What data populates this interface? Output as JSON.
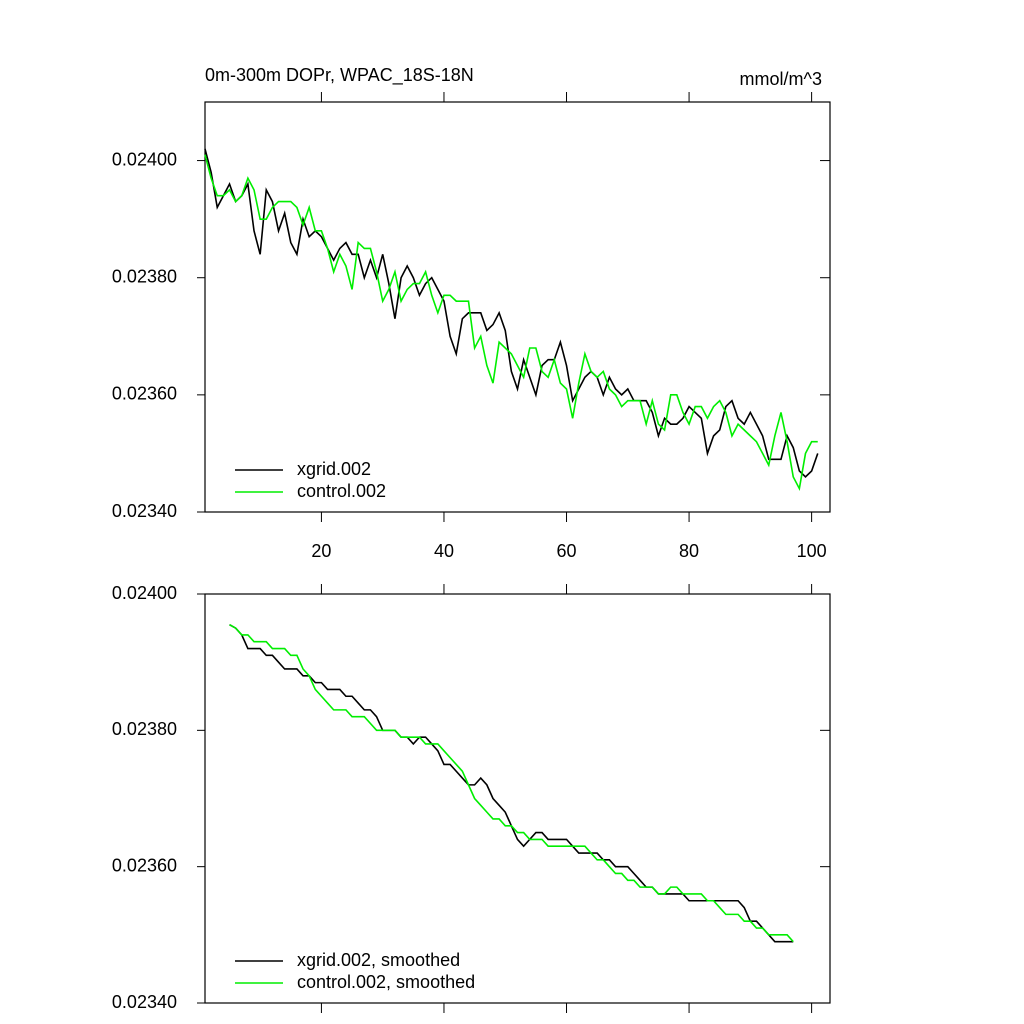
{
  "chart_data": [
    {
      "type": "line",
      "title": "0m-300m DOPr, WPAC_18S-18N",
      "units": "mmol/m^3",
      "x": [
        1,
        2,
        3,
        4,
        5,
        6,
        7,
        8,
        9,
        10,
        11,
        12,
        13,
        14,
        15,
        16,
        17,
        18,
        19,
        20,
        21,
        22,
        23,
        24,
        25,
        26,
        27,
        28,
        29,
        30,
        31,
        32,
        33,
        34,
        35,
        36,
        37,
        38,
        39,
        40,
        41,
        42,
        43,
        44,
        45,
        46,
        47,
        48,
        49,
        50,
        51,
        52,
        53,
        54,
        55,
        56,
        57,
        58,
        59,
        60,
        61,
        62,
        63,
        64,
        65,
        66,
        67,
        68,
        69,
        70,
        71,
        72,
        73,
        74,
        75,
        76,
        77,
        78,
        79,
        80,
        81,
        82,
        83,
        84,
        85,
        86,
        87,
        88,
        89,
        90,
        91,
        92,
        93,
        94,
        95,
        96,
        97,
        98,
        99,
        100,
        101
      ],
      "series": [
        {
          "name": "xgrid.002",
          "color": "#000000",
          "values": [
            0.02402,
            0.02398,
            0.02392,
            0.02394,
            0.02396,
            0.02393,
            0.02394,
            0.02396,
            0.02388,
            0.02384,
            0.02395,
            0.02393,
            0.02388,
            0.02391,
            0.02386,
            0.02384,
            0.0239,
            0.02387,
            0.02388,
            0.02387,
            0.02385,
            0.02383,
            0.02385,
            0.02386,
            0.02384,
            0.02384,
            0.0238,
            0.02383,
            0.0238,
            0.02384,
            0.02379,
            0.02373,
            0.0238,
            0.02382,
            0.0238,
            0.02377,
            0.02379,
            0.0238,
            0.02378,
            0.02376,
            0.0237,
            0.02367,
            0.02373,
            0.02374,
            0.02374,
            0.02374,
            0.02371,
            0.02372,
            0.02374,
            0.02371,
            0.02364,
            0.02361,
            0.02366,
            0.02363,
            0.0236,
            0.02365,
            0.02366,
            0.02366,
            0.02369,
            0.02365,
            0.02359,
            0.02361,
            0.02363,
            0.02364,
            0.02363,
            0.0236,
            0.02363,
            0.02361,
            0.0236,
            0.02361,
            0.02359,
            0.02359,
            0.02359,
            0.02357,
            0.02353,
            0.02356,
            0.02355,
            0.02355,
            0.02356,
            0.02358,
            0.02357,
            0.02356,
            0.0235,
            0.02353,
            0.02354,
            0.02358,
            0.02359,
            0.02356,
            0.02355,
            0.02357,
            0.02355,
            0.02353,
            0.02349,
            0.02349,
            0.02349,
            0.02353,
            0.02351,
            0.02347,
            0.02346,
            0.02347,
            0.0235
          ]
        },
        {
          "name": "control.002",
          "color": "#00ee00",
          "values": [
            0.02401,
            0.02397,
            0.02394,
            0.02394,
            0.02395,
            0.02393,
            0.02394,
            0.02397,
            0.02395,
            0.0239,
            0.0239,
            0.02392,
            0.02393,
            0.02393,
            0.02393,
            0.02392,
            0.02389,
            0.02392,
            0.02388,
            0.02388,
            0.02385,
            0.02381,
            0.02384,
            0.02382,
            0.02378,
            0.02386,
            0.02385,
            0.02385,
            0.02381,
            0.02376,
            0.02378,
            0.02381,
            0.02376,
            0.02378,
            0.02379,
            0.02379,
            0.02381,
            0.02377,
            0.02374,
            0.02377,
            0.02377,
            0.02376,
            0.02376,
            0.02376,
            0.02368,
            0.0237,
            0.02365,
            0.02362,
            0.02369,
            0.02368,
            0.02367,
            0.02365,
            0.02363,
            0.02368,
            0.02368,
            0.02364,
            0.02363,
            0.02366,
            0.02362,
            0.02361,
            0.02356,
            0.02362,
            0.02367,
            0.02364,
            0.02363,
            0.02364,
            0.02361,
            0.0236,
            0.02358,
            0.02359,
            0.02359,
            0.02359,
            0.02355,
            0.02359,
            0.02355,
            0.02354,
            0.0236,
            0.0236,
            0.02357,
            0.02355,
            0.02358,
            0.02358,
            0.02356,
            0.02358,
            0.02359,
            0.02357,
            0.02353,
            0.02355,
            0.02354,
            0.02353,
            0.02352,
            0.0235,
            0.02348,
            0.02353,
            0.02357,
            0.02352,
            0.02346,
            0.02344,
            0.0235,
            0.02352,
            0.02352
          ]
        }
      ],
      "xlim": [
        1,
        103
      ],
      "xticks": [
        20,
        40,
        60,
        80,
        100
      ],
      "xtick_labels": true,
      "ylim": [
        0.0234,
        0.0241
      ],
      "yticks": [
        {
          "value": 0.0234,
          "label": "0.02340"
        },
        {
          "value": 0.0236,
          "label": "0.02360"
        },
        {
          "value": 0.0238,
          "label": "0.02380"
        },
        {
          "value": 0.024,
          "label": "0.02400"
        }
      ],
      "legend": "lower left"
    },
    {
      "type": "line",
      "x": [
        5,
        6,
        7,
        8,
        9,
        10,
        11,
        12,
        13,
        14,
        15,
        16,
        17,
        18,
        19,
        20,
        21,
        22,
        23,
        24,
        25,
        26,
        27,
        28,
        29,
        30,
        31,
        32,
        33,
        34,
        35,
        36,
        37,
        38,
        39,
        40,
        41,
        42,
        43,
        44,
        45,
        46,
        47,
        48,
        49,
        50,
        51,
        52,
        53,
        54,
        55,
        56,
        57,
        58,
        59,
        60,
        61,
        62,
        63,
        64,
        65,
        66,
        67,
        68,
        69,
        70,
        71,
        72,
        73,
        74,
        75,
        76,
        77,
        78,
        79,
        80,
        81,
        82,
        83,
        84,
        85,
        86,
        87,
        88,
        89,
        90,
        91,
        92,
        93,
        94,
        95,
        96,
        97
      ],
      "series": [
        {
          "name": "xgrid.002, smoothed",
          "color": "#000000",
          "values": [
            0.023955,
            0.02395,
            0.02394,
            0.02392,
            0.02392,
            0.02392,
            0.02391,
            0.02391,
            0.0239,
            0.02389,
            0.02389,
            0.02389,
            0.02388,
            0.02388,
            0.02387,
            0.02387,
            0.02386,
            0.02386,
            0.02386,
            0.02385,
            0.02385,
            0.02384,
            0.02383,
            0.02383,
            0.02382,
            0.0238,
            0.0238,
            0.0238,
            0.02379,
            0.02379,
            0.02378,
            0.02379,
            0.02379,
            0.02378,
            0.02377,
            0.02375,
            0.02375,
            0.02374,
            0.02373,
            0.02372,
            0.02372,
            0.02373,
            0.02372,
            0.0237,
            0.02369,
            0.02368,
            0.02366,
            0.02364,
            0.02363,
            0.02364,
            0.02365,
            0.02365,
            0.02364,
            0.02364,
            0.02364,
            0.02364,
            0.02363,
            0.02362,
            0.02362,
            0.02362,
            0.02362,
            0.02361,
            0.02361,
            0.0236,
            0.0236,
            0.0236,
            0.02359,
            0.02358,
            0.02357,
            0.02357,
            0.02356,
            0.02356,
            0.02356,
            0.02356,
            0.02356,
            0.02355,
            0.02355,
            0.02355,
            0.02355,
            0.02355,
            0.02355,
            0.02355,
            0.02355,
            0.02355,
            0.02354,
            0.02352,
            0.02352,
            0.02351,
            0.0235,
            0.02349,
            0.02349,
            0.02349,
            0.02349
          ]
        },
        {
          "name": "control.002, smoothed",
          "color": "#00ee00",
          "values": [
            0.023955,
            0.02395,
            0.02394,
            0.02394,
            0.02393,
            0.02393,
            0.02393,
            0.02392,
            0.02392,
            0.02392,
            0.02391,
            0.02391,
            0.02389,
            0.02388,
            0.02386,
            0.02385,
            0.02384,
            0.02383,
            0.02383,
            0.02383,
            0.02382,
            0.02382,
            0.02382,
            0.02381,
            0.0238,
            0.0238,
            0.0238,
            0.0238,
            0.02379,
            0.02379,
            0.02379,
            0.02379,
            0.02378,
            0.02378,
            0.02378,
            0.02377,
            0.02376,
            0.02375,
            0.02374,
            0.02372,
            0.0237,
            0.02369,
            0.02368,
            0.02367,
            0.02367,
            0.02366,
            0.02366,
            0.02365,
            0.02365,
            0.02364,
            0.02364,
            0.02364,
            0.02363,
            0.02363,
            0.02363,
            0.02363,
            0.02363,
            0.02363,
            0.02363,
            0.02362,
            0.02361,
            0.02361,
            0.0236,
            0.02359,
            0.02359,
            0.02358,
            0.02358,
            0.02357,
            0.02357,
            0.02357,
            0.02356,
            0.02356,
            0.02357,
            0.02357,
            0.02356,
            0.02356,
            0.02356,
            0.02356,
            0.02355,
            0.02355,
            0.02354,
            0.02353,
            0.02353,
            0.02353,
            0.02352,
            0.02352,
            0.02351,
            0.02351,
            0.0235,
            0.0235,
            0.0235,
            0.0235,
            0.02349
          ]
        }
      ],
      "xlim": [
        1,
        103
      ],
      "xticks": [
        20,
        40,
        60,
        80,
        100
      ],
      "xtick_labels": false,
      "ylim": [
        0.0234,
        0.024
      ],
      "yticks": [
        {
          "value": 0.0234,
          "label": "0.02340"
        },
        {
          "value": 0.0236,
          "label": "0.02360"
        },
        {
          "value": 0.0238,
          "label": "0.02380"
        },
        {
          "value": 0.024,
          "label": "0.02400"
        }
      ],
      "legend": "lower left"
    }
  ]
}
